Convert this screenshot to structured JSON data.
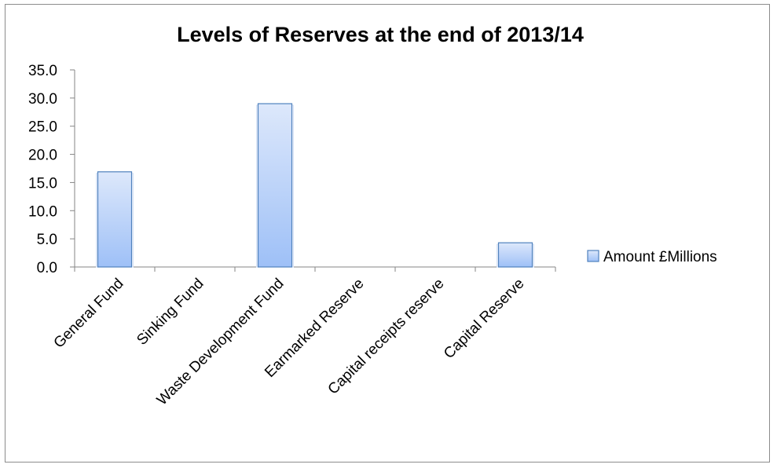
{
  "chart_data": {
    "type": "bar",
    "title": "Levels of Reserves at the end of 2013/14",
    "categories": [
      "General Fund",
      "Sinking Fund",
      "Waste Development Fund",
      "Earmarked Reserve",
      "Capital receipts reserve",
      "Capital Reserve"
    ],
    "series": [
      {
        "name": "Amount £Millions",
        "values": [
          16.9,
          0,
          29.0,
          0,
          0,
          4.3
        ]
      }
    ],
    "ylim": [
      0,
      35
    ],
    "yticks": [
      "0.0",
      "5.0",
      "10.0",
      "15.0",
      "20.0",
      "25.0",
      "30.0",
      "35.0"
    ],
    "grid": false,
    "legend": "right",
    "colors": {
      "bar_top": "#dde8fb",
      "bar_bottom": "#9ec0f7",
      "bar_border": "#4f81bd",
      "axis": "#868686"
    }
  }
}
